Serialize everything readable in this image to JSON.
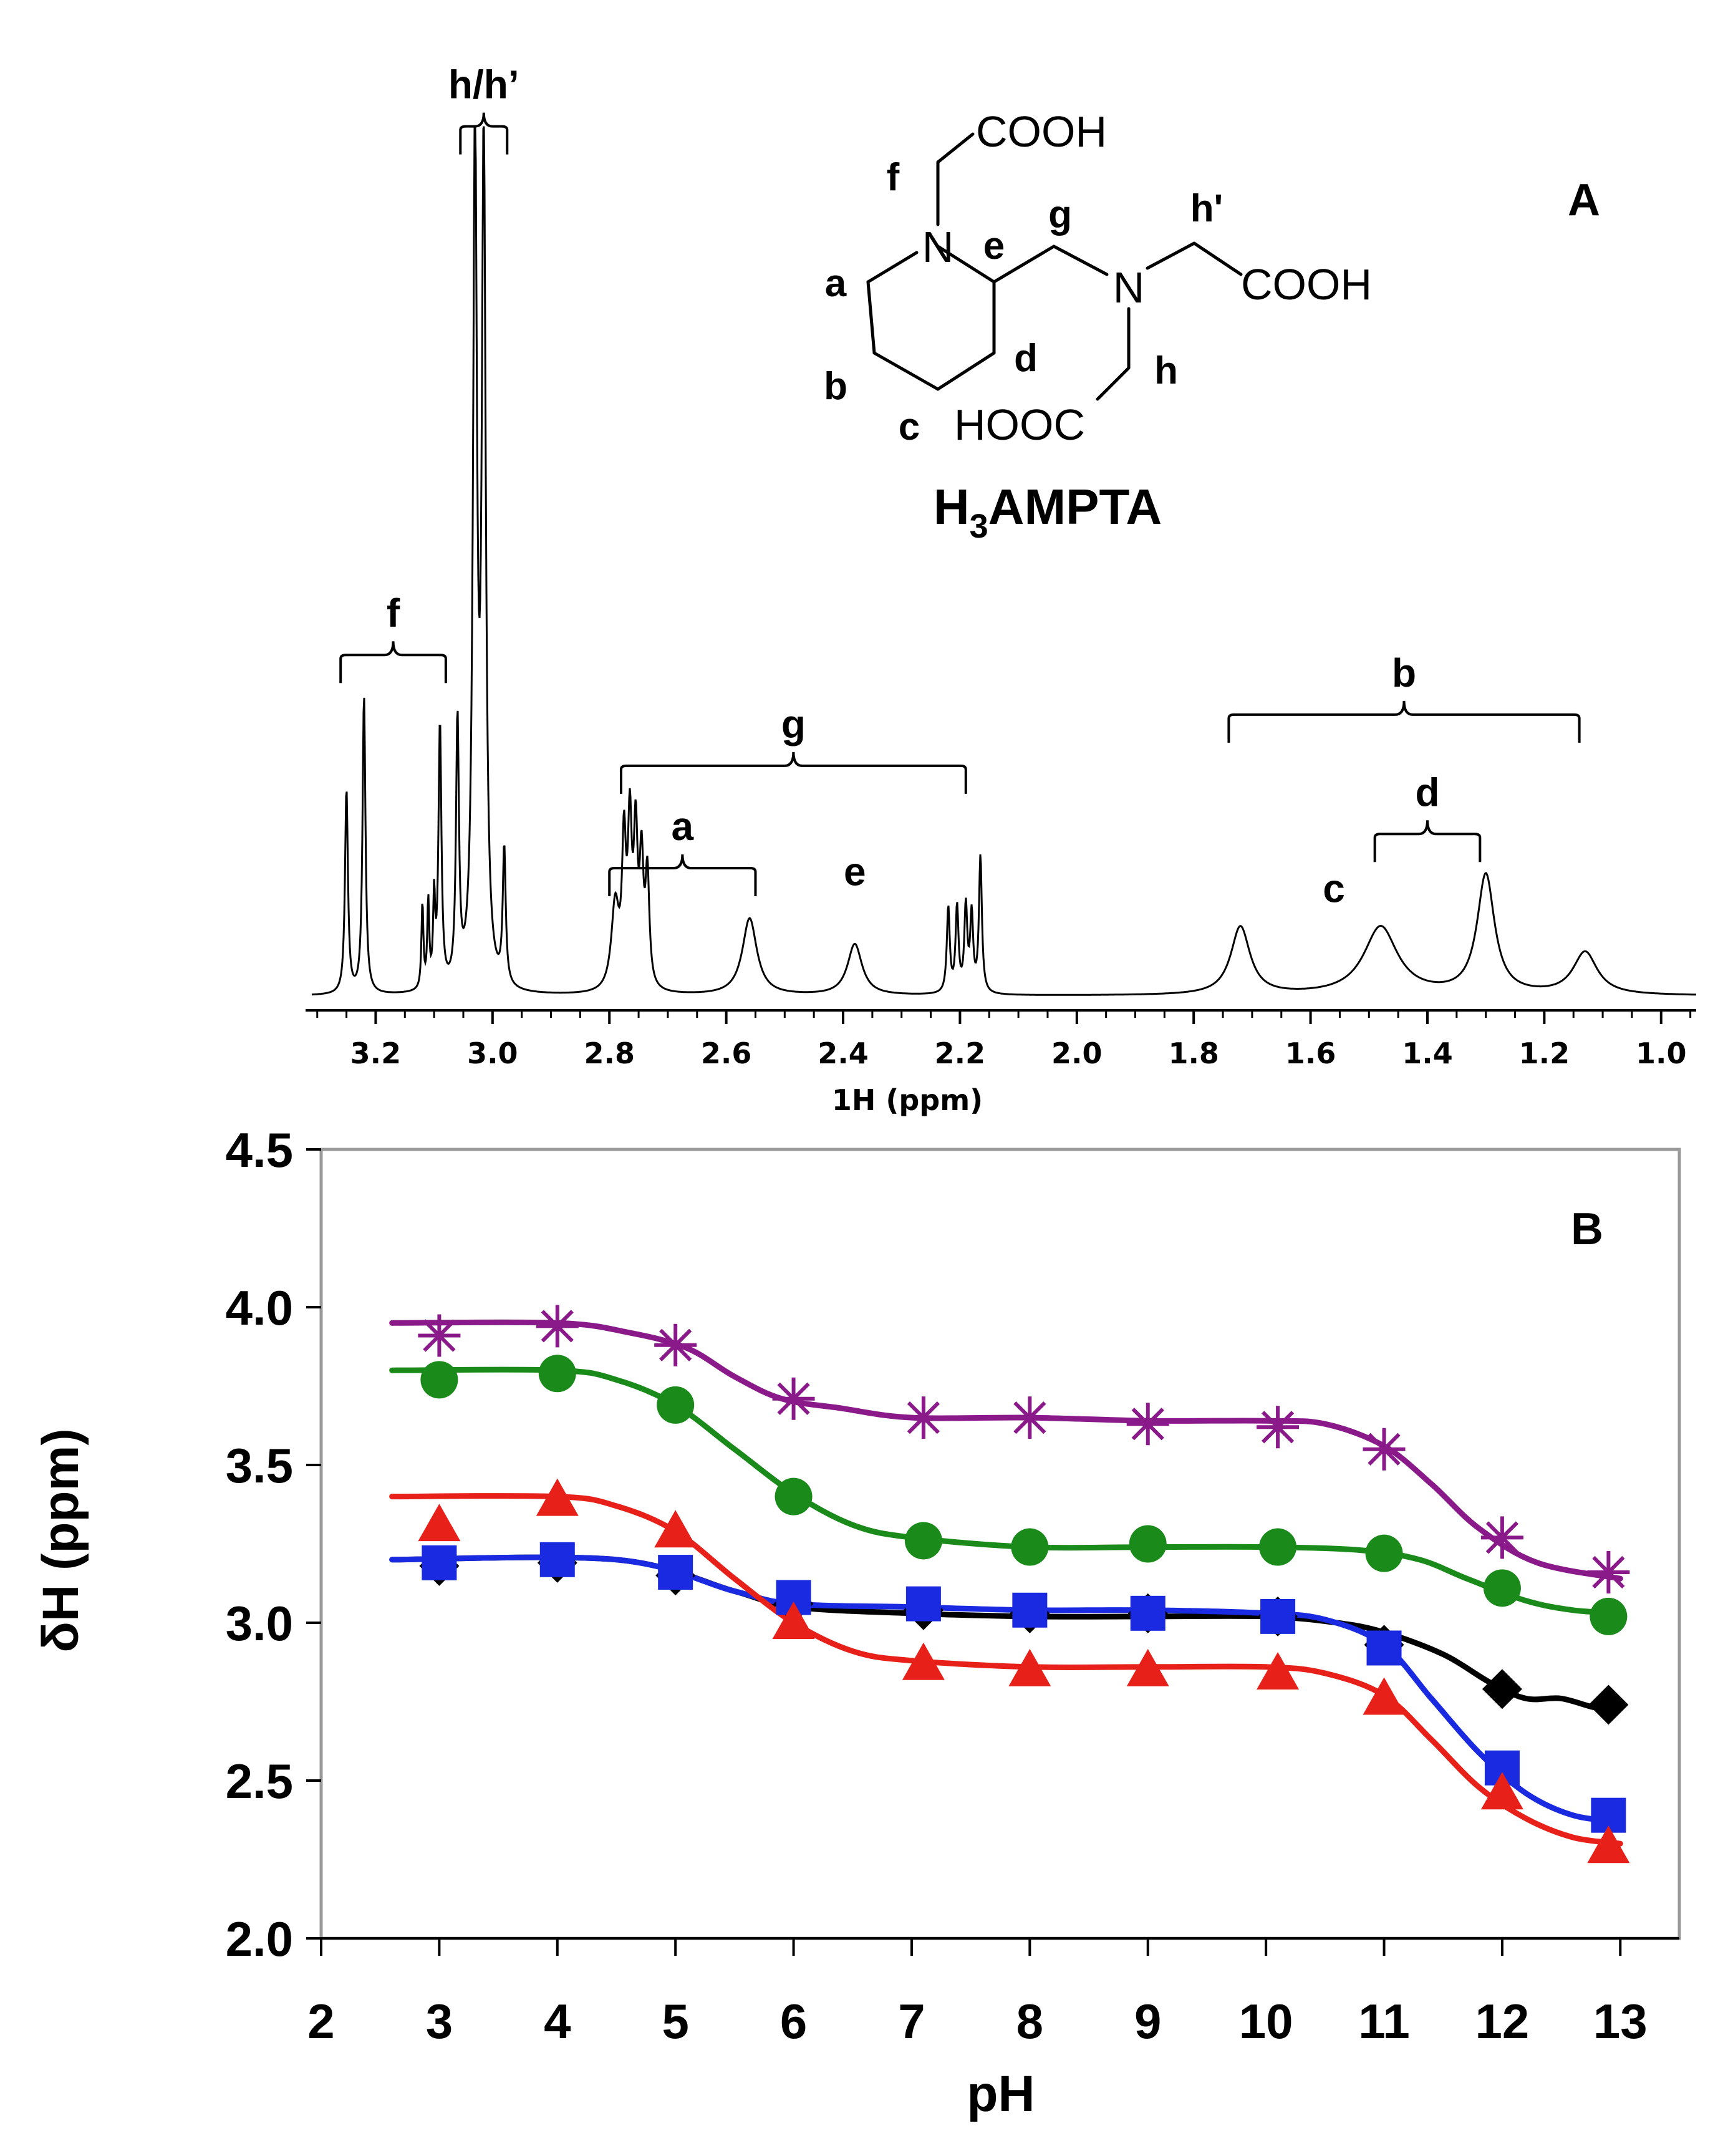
{
  "chart_data": [
    {
      "panel_label": "A",
      "type": "line",
      "title": "",
      "xlabel": "1H (ppm)",
      "ylabel": "",
      "xlim": [
        3.32,
        0.94
      ],
      "x_ticks": [
        "3.2",
        "3.0",
        "2.8",
        "2.6",
        "2.4",
        "2.2",
        "2.0",
        "1.8",
        "1.6",
        "1.4",
        "1.2",
        "1.0"
      ],
      "x_tick_values": [
        3.2,
        3.0,
        2.8,
        2.6,
        2.4,
        2.2,
        2.0,
        1.8,
        1.6,
        1.4,
        1.2,
        1.0
      ],
      "peaks": [
        {
          "ppm": 3.25,
          "height": 0.24,
          "width": 0.003
        },
        {
          "ppm": 3.22,
          "height": 0.35,
          "width": 0.003
        },
        {
          "ppm": 3.12,
          "height": 0.1,
          "width": 0.002
        },
        {
          "ppm": 3.11,
          "height": 0.1,
          "width": 0.002
        },
        {
          "ppm": 3.1,
          "height": 0.1,
          "width": 0.002
        },
        {
          "ppm": 3.09,
          "height": 0.31,
          "width": 0.003
        },
        {
          "ppm": 3.06,
          "height": 0.31,
          "width": 0.003
        },
        {
          "ppm": 3.03,
          "height": 1.0,
          "width": 0.004
        },
        {
          "ppm": 3.015,
          "height": 0.98,
          "width": 0.004
        },
        {
          "ppm": 2.98,
          "height": 0.16,
          "width": 0.003
        },
        {
          "ppm": 2.79,
          "height": 0.1,
          "width": 0.008
        },
        {
          "ppm": 2.775,
          "height": 0.16,
          "width": 0.004
        },
        {
          "ppm": 2.765,
          "height": 0.18,
          "width": 0.004
        },
        {
          "ppm": 2.755,
          "height": 0.17,
          "width": 0.004
        },
        {
          "ppm": 2.745,
          "height": 0.14,
          "width": 0.004
        },
        {
          "ppm": 2.735,
          "height": 0.13,
          "width": 0.004
        },
        {
          "ppm": 2.56,
          "height": 0.09,
          "width": 0.015
        },
        {
          "ppm": 2.38,
          "height": 0.06,
          "width": 0.015
        },
        {
          "ppm": 2.22,
          "height": 0.1,
          "width": 0.003
        },
        {
          "ppm": 2.205,
          "height": 0.1,
          "width": 0.003
        },
        {
          "ppm": 2.19,
          "height": 0.1,
          "width": 0.003
        },
        {
          "ppm": 2.18,
          "height": 0.09,
          "width": 0.003
        },
        {
          "ppm": 2.165,
          "height": 0.16,
          "width": 0.003
        },
        {
          "ppm": 1.72,
          "height": 0.08,
          "width": 0.02
        },
        {
          "ppm": 1.48,
          "height": 0.08,
          "width": 0.035
        },
        {
          "ppm": 1.3,
          "height": 0.14,
          "width": 0.018
        },
        {
          "ppm": 1.13,
          "height": 0.05,
          "width": 0.025
        }
      ],
      "brackets": [
        {
          "label": "h/h’",
          "from": 3.055,
          "to": 2.975,
          "level": 1.02
        },
        {
          "label": "f",
          "from": 3.26,
          "to": 3.08,
          "level": 0.4
        },
        {
          "label": "g",
          "from": 2.78,
          "to": 2.19,
          "level": 0.27
        },
        {
          "label": "a",
          "from": 2.8,
          "to": 2.55,
          "level": 0.15
        },
        {
          "label": "b",
          "from": 1.74,
          "to": 1.14,
          "level": 0.33
        },
        {
          "label": "d",
          "from": 1.49,
          "to": 1.31,
          "level": 0.19
        }
      ],
      "peak_labels": [
        {
          "label": "e",
          "ppm": 2.38,
          "level": 0.13
        },
        {
          "label": "c",
          "ppm": 1.56,
          "level": 0.11
        }
      ],
      "structure": {
        "name": "H3AMPTA",
        "groups": [
          "COOH",
          "COOH",
          "HOOC"
        ],
        "atoms": [
          "N",
          "N"
        ],
        "position_labels": [
          "a",
          "b",
          "c",
          "d",
          "e",
          "f",
          "g",
          "h",
          "h'"
        ]
      }
    },
    {
      "panel_label": "B",
      "type": "line",
      "title": "",
      "xlabel": "pH",
      "ylabel": "δH (ppm)",
      "xlim": [
        2,
        13.5
      ],
      "ylim": [
        2.0,
        4.5
      ],
      "x_ticks": [
        "2",
        "3",
        "4",
        "5",
        "6",
        "7",
        "8",
        "9",
        "10",
        "11",
        "12",
        "13"
      ],
      "y_ticks": [
        "2.0",
        "2.5",
        "3.0",
        "3.5",
        "4.0",
        "4.5"
      ],
      "series": [
        {
          "name": "purple-star",
          "color": "#8a1a8a",
          "marker": "star",
          "points": [
            [
              3.0,
              3.91
            ],
            [
              4.0,
              3.94
            ],
            [
              5.0,
              3.88
            ],
            [
              6.0,
              3.71
            ],
            [
              7.1,
              3.65
            ],
            [
              8.0,
              3.65
            ],
            [
              9.0,
              3.63
            ],
            [
              10.1,
              3.62
            ],
            [
              11.0,
              3.55
            ],
            [
              12.0,
              3.27
            ],
            [
              12.9,
              3.16
            ]
          ],
          "curve": [
            [
              2.6,
              3.95
            ],
            [
              4.0,
              3.95
            ],
            [
              4.6,
              3.92
            ],
            [
              5.1,
              3.87
            ],
            [
              5.5,
              3.78
            ],
            [
              5.9,
              3.71
            ],
            [
              6.4,
              3.68
            ],
            [
              7.0,
              3.65
            ],
            [
              8.0,
              3.65
            ],
            [
              9.0,
              3.64
            ],
            [
              10.0,
              3.64
            ],
            [
              10.5,
              3.63
            ],
            [
              11.0,
              3.56
            ],
            [
              11.4,
              3.44
            ],
            [
              11.8,
              3.3
            ],
            [
              12.3,
              3.19
            ],
            [
              13.0,
              3.14
            ]
          ]
        },
        {
          "name": "green-circle",
          "color": "#1a8a1a",
          "marker": "circle",
          "points": [
            [
              3.0,
              3.77
            ],
            [
              4.0,
              3.79
            ],
            [
              5.0,
              3.69
            ],
            [
              6.0,
              3.4
            ],
            [
              7.1,
              3.26
            ],
            [
              8.0,
              3.24
            ],
            [
              9.0,
              3.25
            ],
            [
              10.1,
              3.24
            ],
            [
              11.0,
              3.22
            ],
            [
              12.0,
              3.11
            ],
            [
              12.9,
              3.02
            ]
          ],
          "curve": [
            [
              2.6,
              3.8
            ],
            [
              4.0,
              3.8
            ],
            [
              4.5,
              3.77
            ],
            [
              5.0,
              3.69
            ],
            [
              5.5,
              3.55
            ],
            [
              6.0,
              3.41
            ],
            [
              6.5,
              3.31
            ],
            [
              7.0,
              3.27
            ],
            [
              8.0,
              3.24
            ],
            [
              9.0,
              3.24
            ],
            [
              10.0,
              3.24
            ],
            [
              10.8,
              3.23
            ],
            [
              11.3,
              3.2
            ],
            [
              11.7,
              3.14
            ],
            [
              12.2,
              3.07
            ],
            [
              12.6,
              3.04
            ],
            [
              13.0,
              3.03
            ]
          ]
        },
        {
          "name": "black-diamond",
          "color": "#000000",
          "marker": "diamond",
          "points": [
            [
              3.0,
              3.18
            ],
            [
              4.0,
              3.19
            ],
            [
              5.0,
              3.15
            ],
            [
              6.0,
              3.06
            ],
            [
              7.1,
              3.04
            ],
            [
              8.0,
              3.03
            ],
            [
              9.0,
              3.03
            ],
            [
              10.1,
              3.02
            ],
            [
              11.0,
              2.93
            ],
            [
              12.0,
              2.79
            ],
            [
              12.9,
              2.74
            ]
          ],
          "curve": [
            [
              2.6,
              3.2
            ],
            [
              4.5,
              3.2
            ],
            [
              5.5,
              3.1
            ],
            [
              6.0,
              3.05
            ],
            [
              7.0,
              3.03
            ],
            [
              8.0,
              3.02
            ],
            [
              9.0,
              3.02
            ],
            [
              10.0,
              3.02
            ],
            [
              10.6,
              3.0
            ],
            [
              11.0,
              2.97
            ],
            [
              11.5,
              2.9
            ],
            [
              11.9,
              2.81
            ],
            [
              12.2,
              2.76
            ],
            [
              12.5,
              2.76
            ],
            [
              12.8,
              2.73
            ],
            [
              13.0,
              2.73
            ]
          ]
        },
        {
          "name": "blue-square",
          "color": "#1a2ae0",
          "marker": "square",
          "points": [
            [
              3.0,
              3.19
            ],
            [
              4.0,
              3.2
            ],
            [
              5.0,
              3.16
            ],
            [
              6.0,
              3.08
            ],
            [
              7.1,
              3.06
            ],
            [
              8.0,
              3.04
            ],
            [
              9.0,
              3.03
            ],
            [
              10.1,
              3.02
            ],
            [
              11.0,
              2.92
            ],
            [
              12.0,
              2.54
            ],
            [
              12.9,
              2.39
            ]
          ],
          "curve": [
            [
              2.6,
              3.2
            ],
            [
              4.5,
              3.2
            ],
            [
              5.5,
              3.1
            ],
            [
              6.0,
              3.06
            ],
            [
              7.0,
              3.05
            ],
            [
              8.0,
              3.04
            ],
            [
              9.0,
              3.04
            ],
            [
              10.0,
              3.03
            ],
            [
              10.5,
              3.01
            ],
            [
              11.0,
              2.93
            ],
            [
              11.4,
              2.76
            ],
            [
              11.8,
              2.59
            ],
            [
              12.2,
              2.46
            ],
            [
              12.6,
              2.39
            ],
            [
              13.0,
              2.37
            ]
          ]
        },
        {
          "name": "red-triangle",
          "color": "#e8201a",
          "marker": "triangle",
          "points": [
            [
              3.0,
              3.31
            ],
            [
              4.0,
              3.39
            ],
            [
              5.0,
              3.29
            ],
            [
              6.0,
              3.0
            ],
            [
              7.1,
              2.87
            ],
            [
              8.0,
              2.85
            ],
            [
              9.0,
              2.85
            ],
            [
              10.1,
              2.84
            ],
            [
              11.0,
              2.76
            ],
            [
              12.0,
              2.46
            ],
            [
              12.9,
              2.29
            ]
          ],
          "curve": [
            [
              2.6,
              3.4
            ],
            [
              4.0,
              3.4
            ],
            [
              4.5,
              3.37
            ],
            [
              5.0,
              3.29
            ],
            [
              5.5,
              3.14
            ],
            [
              6.0,
              3.0
            ],
            [
              6.5,
              2.91
            ],
            [
              7.0,
              2.88
            ],
            [
              8.0,
              2.86
            ],
            [
              9.0,
              2.86
            ],
            [
              10.0,
              2.86
            ],
            [
              10.5,
              2.84
            ],
            [
              11.0,
              2.77
            ],
            [
              11.4,
              2.63
            ],
            [
              11.8,
              2.48
            ],
            [
              12.2,
              2.38
            ],
            [
              12.6,
              2.32
            ],
            [
              13.0,
              2.3
            ]
          ]
        }
      ]
    }
  ]
}
